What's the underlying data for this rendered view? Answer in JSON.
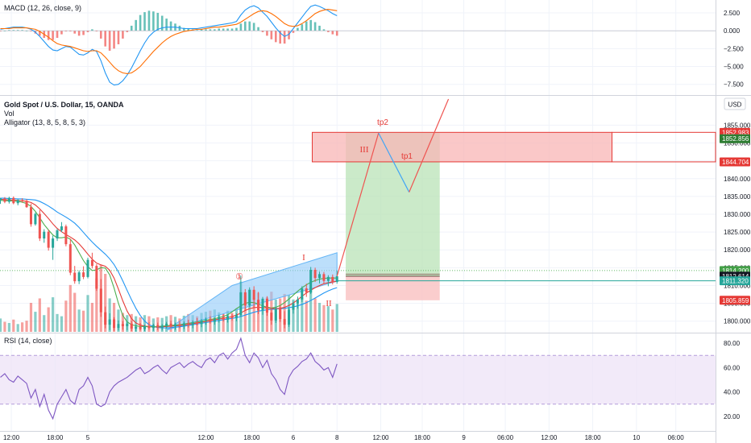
{
  "chart_data": {
    "type": "candlestick",
    "symbol_title": "Gold Spot / U.S. Dollar, 15, OANDA",
    "indicators": [
      "Vol",
      "Alligator (13, 8, 5, 8, 5, 3)"
    ],
    "currency_button": "USD",
    "colors": {
      "up": "#26a69a",
      "down": "#ef5350",
      "jaw": "#2196f3",
      "teeth": "#e53935",
      "lips": "#4caf50",
      "macd": "#2196f3",
      "signal": "#ff6d00",
      "rsi": "#7e57c2",
      "zone_fill": "#f8b5b5",
      "zone_edge": "#e53935",
      "profit_fill": "#b9e3b7",
      "loss_fill": "#f9c4c4",
      "channel_fill": "#90caf9"
    },
    "price_axis": {
      "min": 1797,
      "max": 1863,
      "ticks": [
        "1855.000",
        "1850.000",
        "1845.000",
        "1840.000",
        "1835.000",
        "1830.000",
        "1825.000",
        "1820.000",
        "1815.000",
        "1810.000",
        "1805.000",
        "1800.000"
      ],
      "tick_values": [
        1855,
        1850,
        1845,
        1840,
        1835,
        1830,
        1825,
        1820,
        1815,
        1810,
        1805,
        1800
      ]
    },
    "price_badges": [
      {
        "label": "1852.983",
        "value": 1852.983,
        "color": "#e53935"
      },
      {
        "label": "1852.856",
        "value": 1851.2,
        "color": "#2e7d32"
      },
      {
        "label": "1844.704",
        "value": 1844.704,
        "color": "#e53935"
      },
      {
        "label": "1814.200",
        "value": 1814.2,
        "color": "#43a047"
      },
      {
        "label": "1812.614",
        "value": 1812.614,
        "color": "#131722"
      },
      {
        "label": "1811.320",
        "value": 1811.32,
        "color": "#26a69a"
      },
      {
        "label": "1805.859",
        "value": 1805.859,
        "color": "#e53935"
      }
    ],
    "time_axis": {
      "labels": [
        "12:00",
        "18:00",
        "5",
        "12:00",
        "18:00",
        "6",
        "8",
        "12:00",
        "18:00",
        "9",
        "06:00",
        "12:00",
        "18:00",
        "10",
        "06:00"
      ],
      "x_index": [
        2.5,
        12.5,
        20,
        47,
        57.5,
        67,
        77,
        87,
        96.5,
        106,
        115.5,
        125.5,
        135.5,
        145.5,
        154.5
      ]
    },
    "candles": [
      {
        "o": 1834.0,
        "h": 1834.6,
        "l": 1832.9,
        "c": 1834.4
      },
      {
        "o": 1834.4,
        "h": 1834.8,
        "l": 1833.1,
        "c": 1833.5
      },
      {
        "o": 1833.5,
        "h": 1834.9,
        "l": 1833.0,
        "c": 1834.6
      },
      {
        "o": 1834.6,
        "h": 1835.0,
        "l": 1832.8,
        "c": 1833.1
      },
      {
        "o": 1833.1,
        "h": 1834.3,
        "l": 1832.5,
        "c": 1834.0
      },
      {
        "o": 1834.0,
        "h": 1834.5,
        "l": 1833.2,
        "c": 1833.8
      },
      {
        "o": 1833.8,
        "h": 1834.2,
        "l": 1831.8,
        "c": 1832.0
      },
      {
        "o": 1832.0,
        "h": 1833.0,
        "l": 1826.5,
        "c": 1827.2
      },
      {
        "o": 1827.2,
        "h": 1830.5,
        "l": 1826.8,
        "c": 1830.1
      },
      {
        "o": 1830.1,
        "h": 1831.2,
        "l": 1822.5,
        "c": 1823.2
      },
      {
        "o": 1823.2,
        "h": 1825.8,
        "l": 1822.0,
        "c": 1825.1
      },
      {
        "o": 1825.1,
        "h": 1825.7,
        "l": 1819.8,
        "c": 1820.6
      },
      {
        "o": 1820.6,
        "h": 1824.0,
        "l": 1817.2,
        "c": 1823.2
      },
      {
        "o": 1823.2,
        "h": 1825.9,
        "l": 1822.5,
        "c": 1825.5
      },
      {
        "o": 1825.5,
        "h": 1827.8,
        "l": 1825.0,
        "c": 1826.6
      },
      {
        "o": 1826.6,
        "h": 1827.1,
        "l": 1821.0,
        "c": 1821.6
      },
      {
        "o": 1821.6,
        "h": 1823.1,
        "l": 1812.9,
        "c": 1813.6
      },
      {
        "o": 1813.6,
        "h": 1815.5,
        "l": 1810.5,
        "c": 1811.2
      },
      {
        "o": 1811.2,
        "h": 1814.2,
        "l": 1810.4,
        "c": 1813.7
      },
      {
        "o": 1813.7,
        "h": 1815.4,
        "l": 1811.8,
        "c": 1812.4
      },
      {
        "o": 1812.4,
        "h": 1817.8,
        "l": 1812.0,
        "c": 1817.2
      },
      {
        "o": 1817.2,
        "h": 1819.2,
        "l": 1814.8,
        "c": 1815.5
      },
      {
        "o": 1815.5,
        "h": 1816.0,
        "l": 1808.5,
        "c": 1809.1
      },
      {
        "o": 1809.1,
        "h": 1811.8,
        "l": 1801.2,
        "c": 1802.5
      },
      {
        "o": 1802.5,
        "h": 1804.1,
        "l": 1798.0,
        "c": 1799.0
      },
      {
        "o": 1799.0,
        "h": 1802.2,
        "l": 1797.5,
        "c": 1800.5
      },
      {
        "o": 1800.5,
        "h": 1801.1,
        "l": 1797.3,
        "c": 1798.1
      },
      {
        "o": 1798.1,
        "h": 1800.2,
        "l": 1797.4,
        "c": 1799.2
      },
      {
        "o": 1799.2,
        "h": 1800.0,
        "l": 1797.6,
        "c": 1798.6
      },
      {
        "o": 1798.6,
        "h": 1799.9,
        "l": 1797.5,
        "c": 1799.3
      },
      {
        "o": 1799.3,
        "h": 1800.1,
        "l": 1797.2,
        "c": 1797.9
      },
      {
        "o": 1797.9,
        "h": 1799.0,
        "l": 1797.1,
        "c": 1798.4
      },
      {
        "o": 1798.4,
        "h": 1799.5,
        "l": 1797.4,
        "c": 1797.8
      },
      {
        "o": 1797.8,
        "h": 1799.0,
        "l": 1797.2,
        "c": 1798.6
      },
      {
        "o": 1798.6,
        "h": 1799.7,
        "l": 1797.6,
        "c": 1798.1
      },
      {
        "o": 1798.1,
        "h": 1799.3,
        "l": 1797.3,
        "c": 1798.9
      },
      {
        "o": 1798.9,
        "h": 1799.6,
        "l": 1797.5,
        "c": 1798.2
      },
      {
        "o": 1798.2,
        "h": 1799.2,
        "l": 1797.4,
        "c": 1798.7
      },
      {
        "o": 1798.7,
        "h": 1799.8,
        "l": 1797.9,
        "c": 1799.3
      },
      {
        "o": 1799.3,
        "h": 1800.1,
        "l": 1798.0,
        "c": 1798.5
      },
      {
        "o": 1798.5,
        "h": 1799.6,
        "l": 1797.6,
        "c": 1799.1
      },
      {
        "o": 1799.1,
        "h": 1800.0,
        "l": 1798.0,
        "c": 1798.6
      },
      {
        "o": 1798.6,
        "h": 1799.9,
        "l": 1797.8,
        "c": 1799.4
      },
      {
        "o": 1799.4,
        "h": 1800.4,
        "l": 1798.2,
        "c": 1798.9
      },
      {
        "o": 1798.9,
        "h": 1800.2,
        "l": 1798.0,
        "c": 1799.7
      },
      {
        "o": 1799.7,
        "h": 1800.9,
        "l": 1798.8,
        "c": 1799.2
      },
      {
        "o": 1799.2,
        "h": 1800.6,
        "l": 1798.3,
        "c": 1800.1
      },
      {
        "o": 1800.1,
        "h": 1801.0,
        "l": 1799.0,
        "c": 1800.5
      },
      {
        "o": 1800.5,
        "h": 1801.4,
        "l": 1799.3,
        "c": 1799.8
      },
      {
        "o": 1799.8,
        "h": 1801.0,
        "l": 1799.0,
        "c": 1800.6
      },
      {
        "o": 1800.6,
        "h": 1801.8,
        "l": 1799.6,
        "c": 1801.1
      },
      {
        "o": 1801.1,
        "h": 1802.0,
        "l": 1799.9,
        "c": 1800.4
      },
      {
        "o": 1800.4,
        "h": 1801.9,
        "l": 1799.6,
        "c": 1801.4
      },
      {
        "o": 1801.4,
        "h": 1802.1,
        "l": 1800.2,
        "c": 1800.9
      },
      {
        "o": 1800.9,
        "h": 1802.2,
        "l": 1800.0,
        "c": 1801.7
      },
      {
        "o": 1801.7,
        "h": 1812.8,
        "l": 1801.2,
        "c": 1808.1
      },
      {
        "o": 1808.1,
        "h": 1809.0,
        "l": 1803.2,
        "c": 1804.4
      },
      {
        "o": 1804.4,
        "h": 1809.5,
        "l": 1803.9,
        "c": 1808.8
      },
      {
        "o": 1808.8,
        "h": 1809.8,
        "l": 1804.0,
        "c": 1806.0
      },
      {
        "o": 1806.0,
        "h": 1808.2,
        "l": 1802.0,
        "c": 1803.0
      },
      {
        "o": 1803.0,
        "h": 1806.8,
        "l": 1801.8,
        "c": 1806.3
      },
      {
        "o": 1806.3,
        "h": 1807.0,
        "l": 1801.5,
        "c": 1802.4
      },
      {
        "o": 1802.4,
        "h": 1803.8,
        "l": 1799.0,
        "c": 1800.2
      },
      {
        "o": 1800.2,
        "h": 1804.0,
        "l": 1799.5,
        "c": 1803.5
      },
      {
        "o": 1803.5,
        "h": 1804.3,
        "l": 1799.8,
        "c": 1800.6
      },
      {
        "o": 1800.6,
        "h": 1802.8,
        "l": 1798.0,
        "c": 1799.0
      },
      {
        "o": 1799.0,
        "h": 1803.9,
        "l": 1798.4,
        "c": 1803.2
      },
      {
        "o": 1803.2,
        "h": 1805.5,
        "l": 1802.1,
        "c": 1805.0
      },
      {
        "o": 1805.0,
        "h": 1806.9,
        "l": 1803.5,
        "c": 1806.1
      },
      {
        "o": 1806.1,
        "h": 1809.8,
        "l": 1805.4,
        "c": 1809.2
      },
      {
        "o": 1809.2,
        "h": 1810.5,
        "l": 1806.8,
        "c": 1808.0
      },
      {
        "o": 1808.0,
        "h": 1815.2,
        "l": 1807.6,
        "c": 1814.4
      },
      {
        "o": 1814.4,
        "h": 1815.0,
        "l": 1811.0,
        "c": 1812.1
      },
      {
        "o": 1812.1,
        "h": 1813.9,
        "l": 1810.6,
        "c": 1813.2
      },
      {
        "o": 1813.2,
        "h": 1813.8,
        "l": 1810.4,
        "c": 1811.3
      },
      {
        "o": 1811.3,
        "h": 1812.9,
        "l": 1809.8,
        "c": 1812.4
      },
      {
        "o": 1812.4,
        "h": 1813.1,
        "l": 1810.3,
        "c": 1811.0
      },
      {
        "o": 1811.0,
        "h": 1814.2,
        "l": 1810.5,
        "c": 1812.6
      }
    ],
    "volume": [
      120,
      90,
      80,
      110,
      70,
      85,
      100,
      260,
      180,
      300,
      150,
      220,
      310,
      160,
      140,
      280,
      420,
      350,
      200,
      190,
      330,
      260,
      480,
      600,
      520,
      300,
      260,
      200,
      170,
      150,
      160,
      140,
      130,
      150,
      140,
      120,
      130,
      125,
      140,
      150,
      135,
      120,
      145,
      160,
      150,
      140,
      170,
      180,
      190,
      200,
      175,
      160,
      190,
      170,
      210,
      450,
      320,
      380,
      300,
      350,
      280,
      310,
      360,
      290,
      300,
      340,
      330,
      290,
      260,
      310,
      280,
      400,
      300,
      260,
      240,
      230,
      200,
      250
    ],
    "alligator": {
      "jaw": [
        1834.5,
        1834.5,
        1834.4,
        1834.4,
        1834.3,
        1834.3,
        1834.2,
        1834.1,
        1834.0,
        1833.6,
        1833.0,
        1832.3,
        1831.5,
        1830.6,
        1829.9,
        1829.2,
        1828.4,
        1827.5,
        1826.3,
        1824.9,
        1823.5,
        1822.2,
        1821.0,
        1819.9,
        1818.8,
        1817.5,
        1815.9,
        1813.8,
        1811.3,
        1808.6,
        1806.0,
        1803.6,
        1801.6,
        1800.0,
        1799.0,
        1798.5,
        1798.2,
        1798.1,
        1798.1,
        1798.2,
        1798.3,
        1798.4,
        1798.6,
        1798.8,
        1799.0,
        1799.2,
        1799.4,
        1799.6,
        1799.8,
        1800.0,
        1800.2,
        1800.4,
        1800.6,
        1800.8,
        1801.0,
        1801.3,
        1801.7,
        1802.1,
        1802.5,
        1802.8,
        1803.0,
        1803.2,
        1803.3,
        1803.4,
        1803.5,
        1803.6,
        1803.8,
        1804.0,
        1804.3,
        1804.7,
        1805.2,
        1805.8,
        1806.5,
        1807.2,
        1807.9,
        1808.5,
        1809.0,
        1809.4
      ],
      "teeth": [
        1834.2,
        1834.1,
        1834.0,
        1834.0,
        1833.9,
        1833.8,
        1833.6,
        1833.3,
        1832.6,
        1831.5,
        1830.2,
        1828.8,
        1827.3,
        1826.0,
        1825.1,
        1824.3,
        1823.6,
        1822.8,
        1821.7,
        1820.3,
        1818.8,
        1817.4,
        1816.3,
        1815.8,
        1815.4,
        1814.3,
        1812.1,
        1809.0,
        1805.7,
        1802.8,
        1800.7,
        1799.5,
        1798.9,
        1798.6,
        1798.5,
        1798.4,
        1798.4,
        1798.4,
        1798.5,
        1798.6,
        1798.7,
        1798.8,
        1798.9,
        1799.1,
        1799.3,
        1799.5,
        1799.7,
        1799.9,
        1800.2,
        1800.4,
        1800.6,
        1800.8,
        1801.0,
        1801.3,
        1801.7,
        1802.3,
        1803.0,
        1803.5,
        1803.8,
        1803.9,
        1803.8,
        1803.7,
        1803.6,
        1803.5,
        1803.6,
        1803.9,
        1804.4,
        1805.1,
        1806.0,
        1807.0,
        1807.9,
        1808.7,
        1809.4,
        1810.0,
        1810.5,
        1810.8,
        1811.0,
        1811.2
      ],
      "lips": [
        1833.9,
        1833.8,
        1833.8,
        1833.7,
        1833.6,
        1833.4,
        1833.0,
        1832.2,
        1830.8,
        1829.0,
        1827.1,
        1825.6,
        1824.2,
        1823.4,
        1823.4,
        1823.6,
        1823.0,
        1821.4,
        1819.2,
        1817.0,
        1815.3,
        1814.2,
        1814.4,
        1815.0,
        1814.9,
        1813.0,
        1809.3,
        1805.0,
        1801.6,
        1799.8,
        1799.0,
        1798.7,
        1798.5,
        1798.5,
        1798.4,
        1798.4,
        1798.5,
        1798.6,
        1798.7,
        1798.8,
        1798.9,
        1799.0,
        1799.2,
        1799.4,
        1799.6,
        1799.8,
        1800.0,
        1800.3,
        1800.5,
        1800.7,
        1801.0,
        1801.3,
        1801.8,
        1802.6,
        1803.5,
        1804.3,
        1805.0,
        1805.3,
        1805.2,
        1804.8,
        1804.3,
        1803.9,
        1803.7,
        1803.9,
        1804.4,
        1805.2,
        1806.2,
        1807.3,
        1808.4,
        1809.4,
        1810.2,
        1810.9,
        1811.4,
        1811.8,
        1812.0,
        1812.1,
        1812.1,
        1812.1
      ]
    },
    "macd_panel": {
      "title": "MACD (12, 26, close, 9)",
      "axis_min": -9,
      "axis_max": 4.3,
      "ticks": [
        "2.500",
        "0.000",
        "−2.500",
        "−5.000",
        "−7.500"
      ],
      "tick_values": [
        2.5,
        0,
        -2.5,
        -5,
        -7.5
      ],
      "macd": [
        0.2,
        0.3,
        0.4,
        0.5,
        0.5,
        0.5,
        0.4,
        0.2,
        -0.2,
        -0.8,
        -1.5,
        -2.2,
        -2.7,
        -2.8,
        -2.5,
        -2.2,
        -2.3,
        -2.8,
        -3.3,
        -3.4,
        -3.1,
        -2.6,
        -2.9,
        -4.2,
        -5.9,
        -7.2,
        -7.6,
        -7.5,
        -7.0,
        -6.2,
        -5.2,
        -4.0,
        -2.8,
        -1.7,
        -0.8,
        -0.2,
        0.2,
        0.4,
        0.5,
        0.5,
        0.5,
        0.4,
        0.3,
        0.3,
        0.3,
        0.3,
        0.4,
        0.5,
        0.6,
        0.7,
        0.8,
        0.9,
        1.0,
        1.1,
        1.3,
        2.2,
        2.9,
        3.3,
        3.5,
        3.2,
        2.6,
        2.0,
        1.2,
        0.4,
        -0.3,
        -0.8,
        -0.5,
        0.3,
        1.1,
        1.9,
        2.7,
        3.4,
        3.6,
        3.4,
        3.1,
        2.8,
        2.4,
        2.1
      ],
      "signal": [
        0.3,
        0.3,
        0.3,
        0.4,
        0.4,
        0.4,
        0.4,
        0.3,
        0.2,
        -0.1,
        -0.5,
        -0.9,
        -1.4,
        -1.8,
        -2.0,
        -2.1,
        -2.2,
        -2.4,
        -2.6,
        -2.8,
        -2.9,
        -2.8,
        -2.8,
        -3.1,
        -3.7,
        -4.4,
        -5.1,
        -5.6,
        -5.9,
        -6.0,
        -5.9,
        -5.5,
        -5.0,
        -4.3,
        -3.6,
        -2.9,
        -2.3,
        -1.7,
        -1.2,
        -0.8,
        -0.5,
        -0.3,
        -0.1,
        0.0,
        0.1,
        0.2,
        0.2,
        0.3,
        0.4,
        0.5,
        0.5,
        0.6,
        0.7,
        0.8,
        0.9,
        1.2,
        1.6,
        2.0,
        2.4,
        2.7,
        2.8,
        2.7,
        2.4,
        2.0,
        1.5,
        1.0,
        0.7,
        0.6,
        0.7,
        1.0,
        1.4,
        1.9,
        2.4,
        2.7,
        2.9,
        3.0,
        2.9,
        2.8
      ]
    },
    "rsi_panel": {
      "title": "RSI (14, close)",
      "axis_min": 8,
      "axis_max": 88,
      "band_upper": 70,
      "band_lower": 30,
      "ticks": [
        "80.00",
        "60.00",
        "40.00",
        "20.00"
      ],
      "tick_values": [
        80,
        60,
        40,
        20
      ],
      "rsi": [
        52,
        55,
        50,
        48,
        53,
        50,
        47,
        35,
        42,
        28,
        38,
        25,
        18,
        30,
        36,
        42,
        33,
        30,
        42,
        45,
        52,
        45,
        30,
        28,
        30,
        40,
        45,
        48,
        50,
        52,
        55,
        58,
        60,
        55,
        57,
        60,
        62,
        58,
        55,
        60,
        62,
        64,
        60,
        63,
        65,
        62,
        60,
        66,
        68,
        64,
        70,
        72,
        67,
        72,
        75,
        84,
        70,
        64,
        72,
        68,
        60,
        66,
        55,
        50,
        42,
        38,
        52,
        58,
        61,
        65,
        67,
        72,
        65,
        62,
        58,
        60,
        52,
        63
      ]
    },
    "annotations": {
      "tp1": "tp1",
      "tp2": "tp2",
      "wave_I": "I",
      "wave_II": "II",
      "wave_III": "III",
      "circle_1": "①"
    },
    "zones": {
      "resistance_top": 1852.983,
      "resistance_bottom": 1844.704,
      "position_entry": 1811.32,
      "position_target": 1852.983,
      "position_stop": 1805.859,
      "position_entry_high": 1812.614
    },
    "projection": [
      {
        "t": 77,
        "p": 1812.6
      },
      {
        "t": 86.5,
        "p": 1852.8
      },
      {
        "t": 93.5,
        "p": 1836.2
      },
      {
        "t": 102.5,
        "p": 1864.0
      }
    ],
    "channel": {
      "lower": [
        {
          "t": 38,
          "p": 1797.5
        },
        {
          "t": 77,
          "p": 1811.2
        }
      ],
      "upper": [
        {
          "t": 53,
          "p": 1810.0
        },
        {
          "t": 77,
          "p": 1819.2
        }
      ]
    }
  }
}
